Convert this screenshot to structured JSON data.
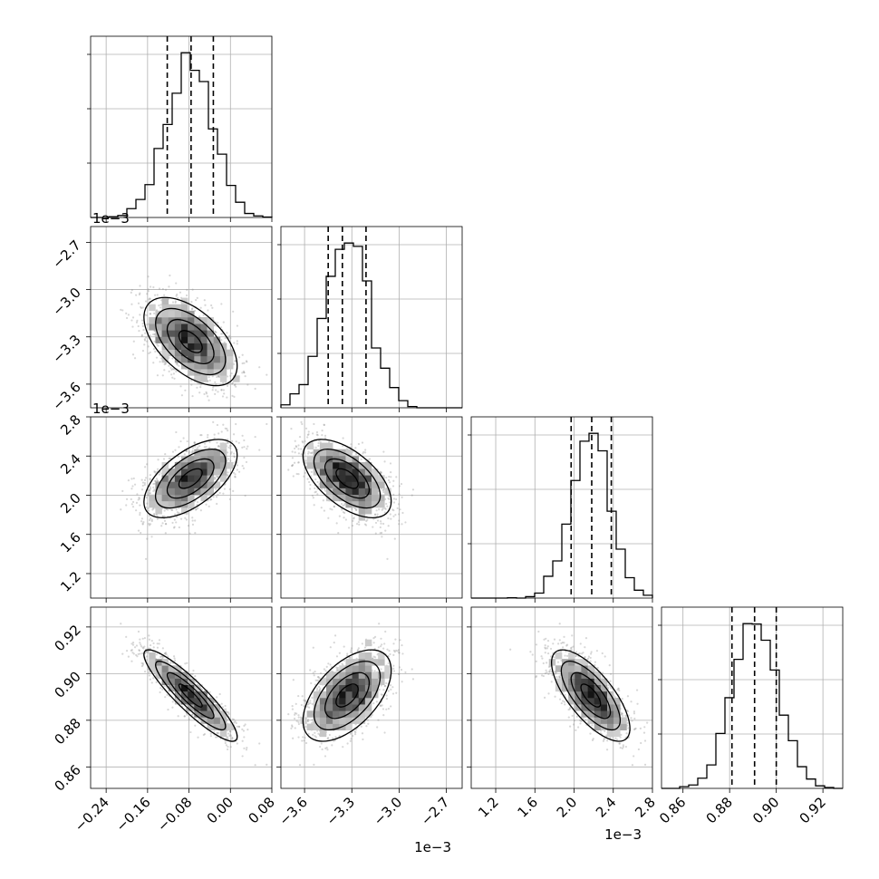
{
  "chart_data": {
    "type": "corner",
    "title": "",
    "grid": true,
    "quantiles": [
      0.16,
      0.5,
      0.84
    ],
    "params": [
      {
        "index": 0,
        "offset_label": "",
        "range": [
          -0.27,
          0.08
        ],
        "ticks": [
          -0.24,
          -0.16,
          -0.08,
          0.0,
          0.08
        ],
        "tick_labels": [
          "−0.24",
          "−0.16",
          "−0.08",
          "0.00",
          "0.08"
        ],
        "mean": -0.077,
        "std": 0.045,
        "quantile_values": [
          -0.122,
          -0.076,
          -0.033
        ]
      },
      {
        "index": 1,
        "offset_label": "1e−3",
        "range": [
          -3.75,
          -2.6
        ],
        "ticks": [
          -3.6,
          -3.3,
          -3.0,
          -2.7
        ],
        "tick_labels": [
          "−3.6",
          "−3.3",
          "−3.0",
          "−2.7"
        ],
        "mean": -3.33,
        "std": 0.14,
        "quantile_values": [
          -3.45,
          -3.36,
          -3.21
        ]
      },
      {
        "index": 2,
        "offset_label": "1e−3",
        "range": [
          0.95,
          2.8
        ],
        "ticks": [
          1.2,
          1.6,
          2.0,
          2.4,
          2.8
        ],
        "tick_labels": [
          "1.2",
          "1.6",
          "2.0",
          "2.4",
          "2.8"
        ],
        "mean": 2.17,
        "std": 0.2,
        "quantile_values": [
          1.97,
          2.18,
          2.38
        ]
      },
      {
        "index": 3,
        "offset_label": "",
        "range": [
          0.8508,
          0.9285
        ],
        "ticks": [
          0.86,
          0.88,
          0.9,
          0.92
        ],
        "tick_labels": [
          "0.86",
          "0.88",
          "0.90",
          "0.92"
        ],
        "mean": 0.8906,
        "std": 0.0098,
        "quantile_values": [
          0.881,
          0.8907,
          0.9
        ]
      }
    ],
    "correlations": {
      "1_0": -0.55,
      "2_0": 0.6,
      "2_1": -0.58,
      "3_0": -0.9,
      "3_1": 0.55,
      "3_2": -0.72
    },
    "histogram_bins": 20,
    "colors": {
      "line": "#000000",
      "grid": "#b0b0b0",
      "samples": "#8c8c8c",
      "background": "#ffffff"
    }
  }
}
